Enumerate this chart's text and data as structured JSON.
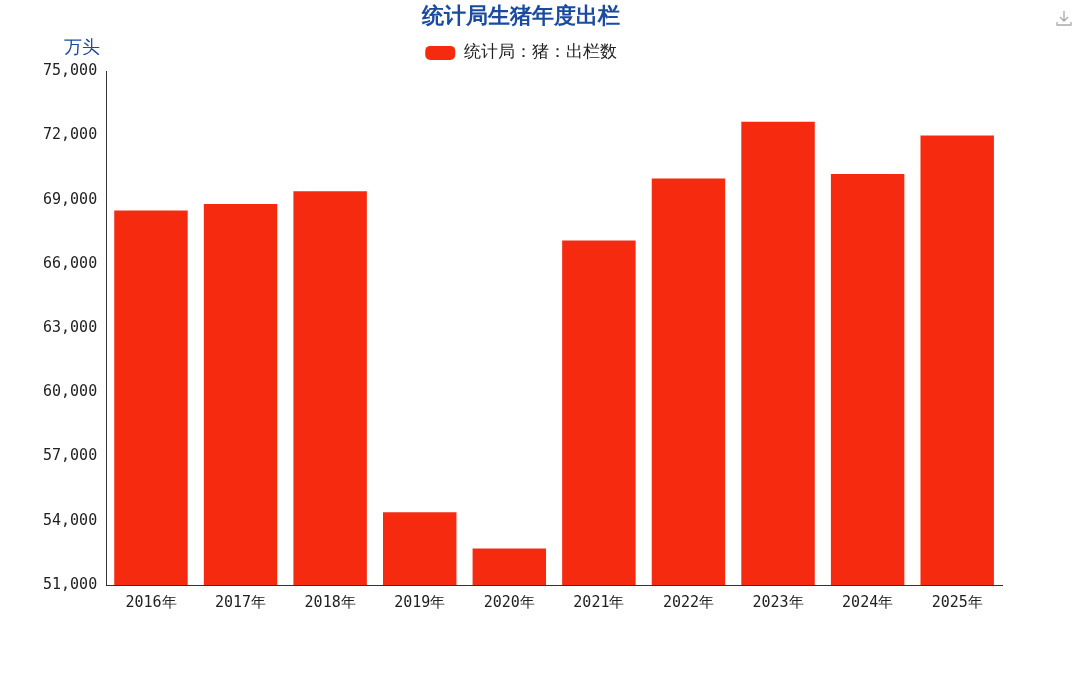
{
  "chart_data": {
    "type": "bar",
    "title": "统计局生猪年度出栏",
    "ylabel": "万头",
    "categories": [
      "2016年",
      "2017年",
      "2018年",
      "2019年",
      "2020年",
      "2021年",
      "2022年",
      "2023年",
      "2024年",
      "2025年"
    ],
    "series": [
      {
        "name": "统计局：猪：出栏数",
        "color": "#f52a0f",
        "values": [
          68500,
          68800,
          69400,
          54400,
          52700,
          67100,
          70000,
          72650,
          70200,
          72000
        ]
      }
    ],
    "ylim": [
      51000,
      75000
    ],
    "yticks": [
      {
        "value": 51000,
        "label": "51,000"
      },
      {
        "value": 54000,
        "label": "54,000"
      },
      {
        "value": 57000,
        "label": "57,000"
      },
      {
        "value": 60000,
        "label": "60,000"
      },
      {
        "value": 63000,
        "label": "63,000"
      },
      {
        "value": 66000,
        "label": "66,000"
      },
      {
        "value": 69000,
        "label": "69,000"
      },
      {
        "value": 72000,
        "label": "72,000"
      },
      {
        "value": 75000,
        "label": "75,000"
      }
    ],
    "grid": false,
    "legend": "top"
  }
}
